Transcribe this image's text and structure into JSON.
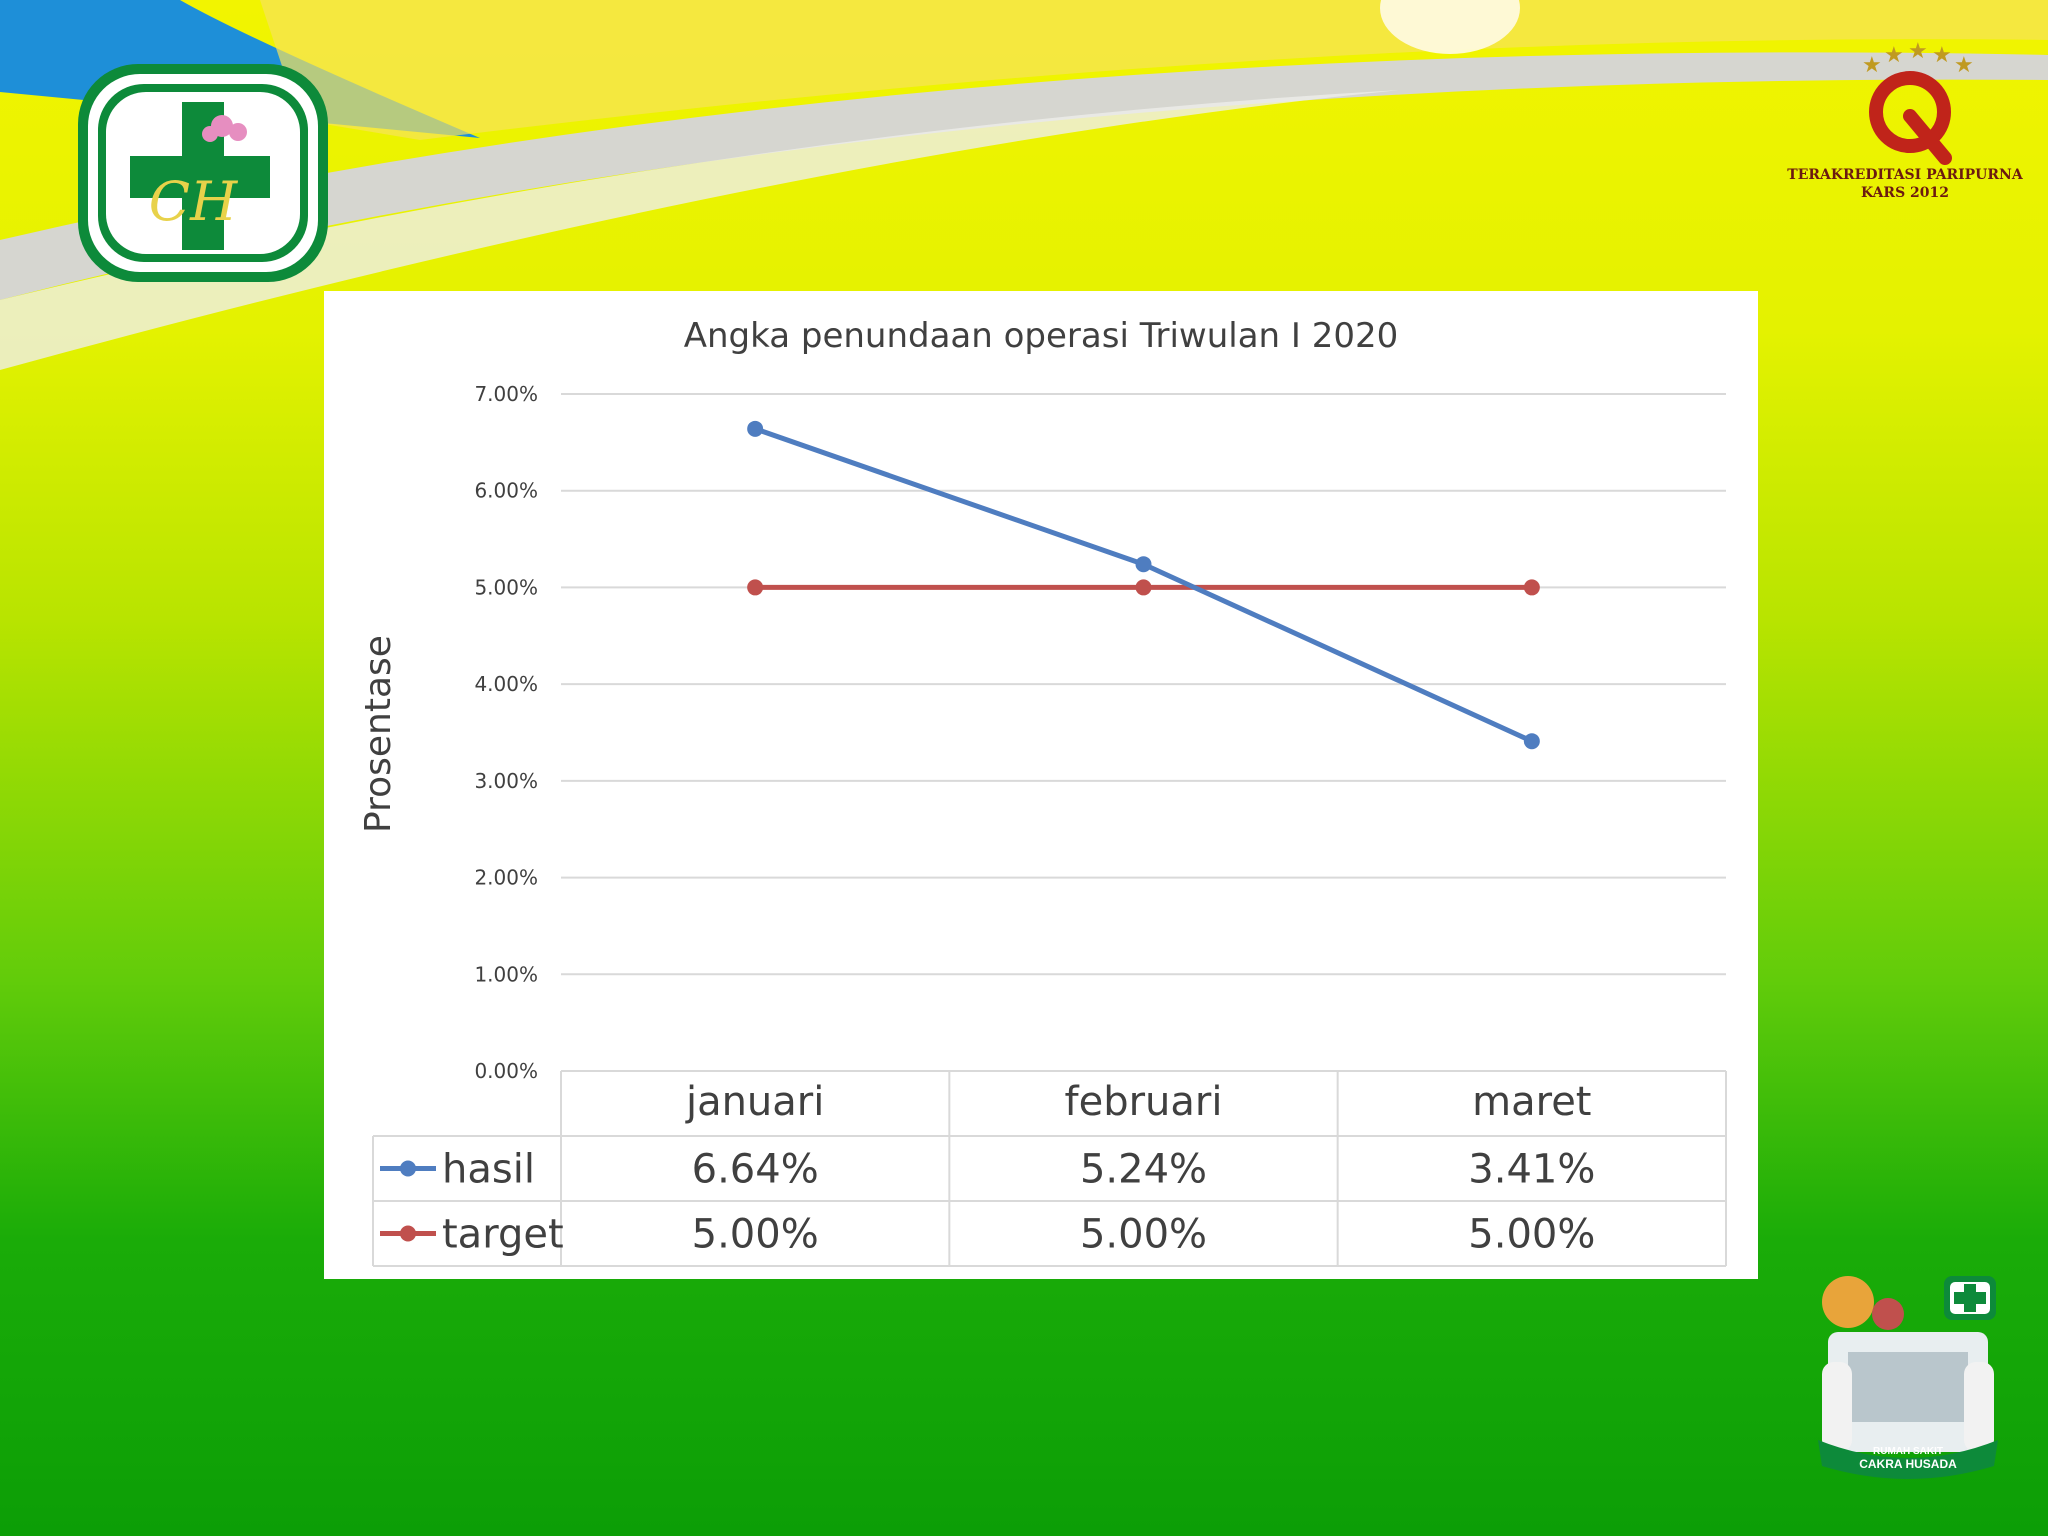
{
  "colors": {
    "hasil": "#4f7dc0",
    "target": "#c0504d",
    "gridline": "#d9d9d9",
    "text": "#404040"
  },
  "logos": {
    "hospital_monogram": "CH",
    "accreditation_caption": [
      "TERAKREDITASI PARIPURNA",
      "KARS 2012"
    ],
    "mascot_banner": [
      "RUMAH SAKIT",
      "CAKRA HUSADA"
    ]
  },
  "chart_data": {
    "type": "line",
    "title": "Angka penundaan operasi Triwulan I 2020",
    "ylabel": "Prosentase",
    "xlabel": "",
    "categories": [
      "januari",
      "februari",
      "maret"
    ],
    "series": [
      {
        "name": "hasil",
        "values": [
          6.64,
          5.24,
          3.41
        ],
        "labels": [
          "6.64%",
          "5.24%",
          "3.41%"
        ]
      },
      {
        "name": "target",
        "values": [
          5.0,
          5.0,
          5.0
        ],
        "labels": [
          "5.00%",
          "5.00%",
          "5.00%"
        ]
      }
    ],
    "ylim": [
      0,
      7
    ],
    "yticks": [
      "0.00%",
      "1.00%",
      "2.00%",
      "3.00%",
      "4.00%",
      "5.00%",
      "6.00%",
      "7.00%"
    ],
    "grid": true,
    "legend": "data-table"
  }
}
